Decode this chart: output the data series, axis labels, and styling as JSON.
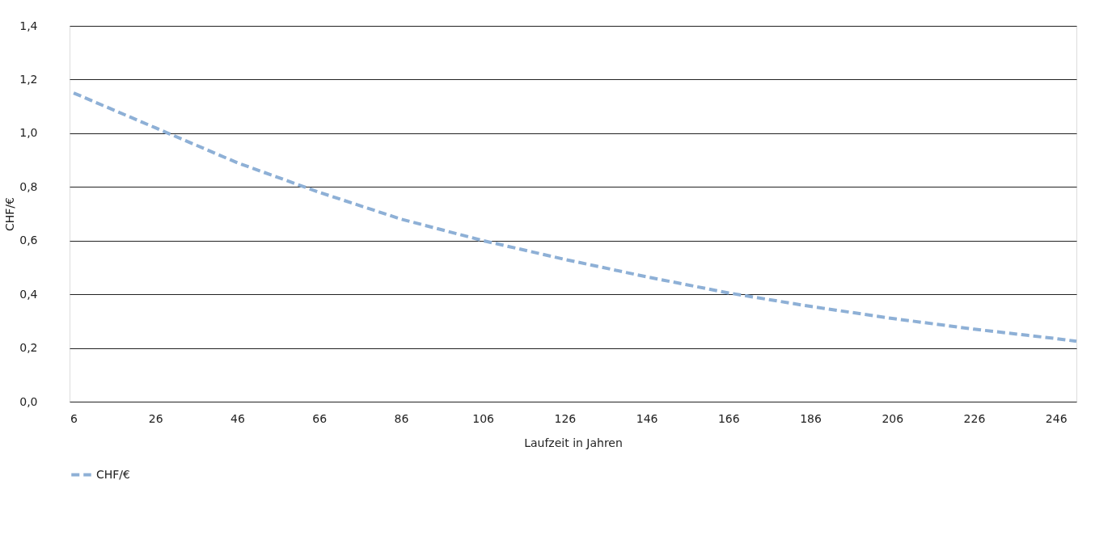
{
  "chart_data": {
    "type": "line",
    "xlabel": "Laufzeit in Jahren",
    "ylabel": "CHF/€",
    "x": [
      6,
      26,
      46,
      66,
      86,
      106,
      126,
      146,
      166,
      186,
      206,
      226,
      246,
      251
    ],
    "series": [
      {
        "name": "CHF/€",
        "color": "#8eb0d6",
        "values": [
          1.15,
          1.02,
          0.89,
          0.78,
          0.68,
          0.6,
          0.53,
          0.465,
          0.405,
          0.355,
          0.31,
          0.27,
          0.235,
          0.225
        ]
      }
    ],
    "xlim": [
      5,
      251
    ],
    "xticks": [
      6,
      26,
      46,
      66,
      86,
      106,
      126,
      146,
      166,
      186,
      206,
      226,
      246
    ],
    "ylim": [
      0,
      1.4
    ],
    "yticks": [
      {
        "value": 0,
        "label": "0,0"
      },
      {
        "value": 0.2,
        "label": "0,2"
      },
      {
        "value": 0.4,
        "label": "0,4"
      },
      {
        "value": 0.6,
        "label": "0,6"
      },
      {
        "value": 0.8,
        "label": "0,8"
      },
      {
        "value": 1.0,
        "label": "1,0"
      },
      {
        "value": 1.2,
        "label": "1,2"
      },
      {
        "value": 1.4,
        "label": "1,4"
      }
    ],
    "grid": "y",
    "legend": "bottom",
    "line_style": "dashed",
    "marker": "none"
  }
}
